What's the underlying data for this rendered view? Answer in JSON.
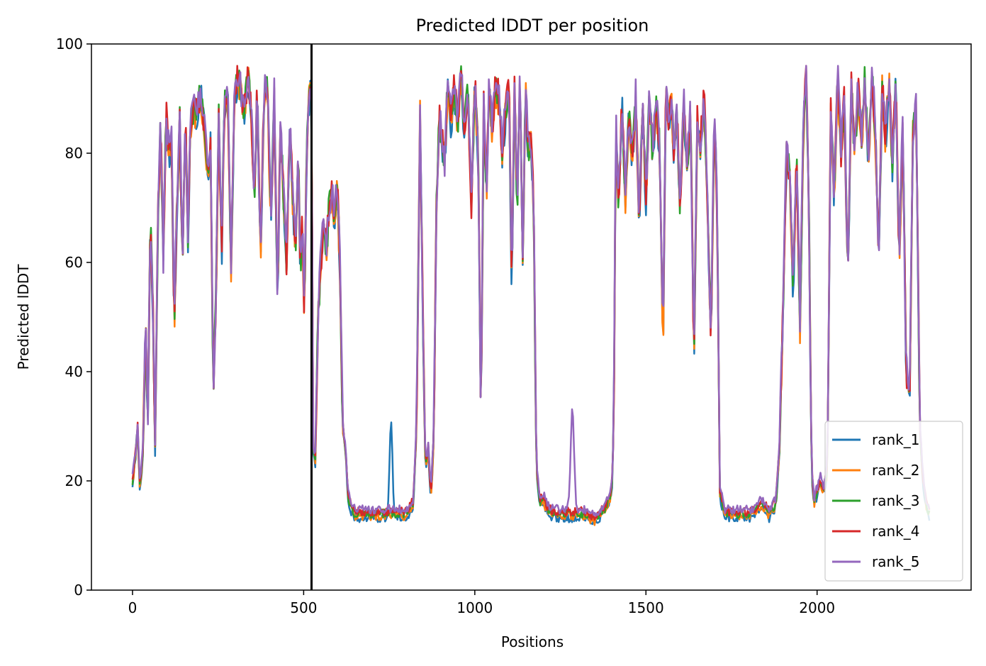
{
  "chart_data": {
    "type": "line",
    "title": "Predicted lDDT per position",
    "xlabel": "Positions",
    "ylabel": "Predicted lDDT",
    "xlim": [
      -120,
      2450
    ],
    "ylim": [
      0,
      100
    ],
    "xticks": [
      0,
      500,
      1000,
      1500,
      2000
    ],
    "yticks": [
      0,
      20,
      40,
      60,
      80,
      100
    ],
    "grid": false,
    "legend_position": "lower right",
    "vertical_line": 523,
    "base_profile": [
      [
        0,
        20
      ],
      [
        8,
        24
      ],
      [
        15,
        30
      ],
      [
        22,
        18
      ],
      [
        30,
        25
      ],
      [
        38,
        48
      ],
      [
        45,
        32
      ],
      [
        52,
        68
      ],
      [
        60,
        50
      ],
      [
        66,
        26
      ],
      [
        75,
        70
      ],
      [
        82,
        85
      ],
      [
        90,
        60
      ],
      [
        98,
        87
      ],
      [
        106,
        80
      ],
      [
        114,
        82
      ],
      [
        122,
        48
      ],
      [
        130,
        72
      ],
      [
        138,
        86
      ],
      [
        146,
        60
      ],
      [
        154,
        88
      ],
      [
        162,
        65
      ],
      [
        170,
        86
      ],
      [
        180,
        87
      ],
      [
        190,
        88
      ],
      [
        200,
        91
      ],
      [
        210,
        85
      ],
      [
        220,
        76
      ],
      [
        228,
        82
      ],
      [
        236,
        35
      ],
      [
        244,
        54
      ],
      [
        252,
        86
      ],
      [
        260,
        60
      ],
      [
        268,
        88
      ],
      [
        278,
        92
      ],
      [
        288,
        58
      ],
      [
        298,
        92
      ],
      [
        308,
        94
      ],
      [
        318,
        90
      ],
      [
        328,
        88
      ],
      [
        338,
        94
      ],
      [
        348,
        86
      ],
      [
        356,
        72
      ],
      [
        364,
        92
      ],
      [
        374,
        60
      ],
      [
        384,
        90
      ],
      [
        394,
        92
      ],
      [
        404,
        68
      ],
      [
        414,
        90
      ],
      [
        424,
        52
      ],
      [
        432,
        85
      ],
      [
        440,
        74
      ],
      [
        450,
        60
      ],
      [
        460,
        85
      ],
      [
        468,
        72
      ],
      [
        476,
        62
      ],
      [
        484,
        82
      ],
      [
        490,
        58
      ],
      [
        496,
        68
      ],
      [
        502,
        50
      ],
      [
        508,
        78
      ],
      [
        514,
        90
      ],
      [
        520,
        92
      ],
      [
        523,
        88
      ],
      [
        528,
        26
      ],
      [
        534,
        24
      ],
      [
        542,
        50
      ],
      [
        550,
        60
      ],
      [
        558,
        66
      ],
      [
        566,
        62
      ],
      [
        574,
        70
      ],
      [
        582,
        72
      ],
      [
        590,
        68
      ],
      [
        598,
        74
      ],
      [
        606,
        60
      ],
      [
        614,
        30
      ],
      [
        622,
        26
      ],
      [
        630,
        17
      ],
      [
        640,
        15
      ],
      [
        650,
        14
      ],
      [
        700,
        14
      ],
      [
        750,
        14
      ],
      [
        800,
        14
      ],
      [
        820,
        16
      ],
      [
        830,
        30
      ],
      [
        840,
        88
      ],
      [
        848,
        50
      ],
      [
        856,
        22
      ],
      [
        864,
        26
      ],
      [
        872,
        17
      ],
      [
        880,
        28
      ],
      [
        888,
        70
      ],
      [
        896,
        86
      ],
      [
        904,
        82
      ],
      [
        912,
        78
      ],
      [
        920,
        92
      ],
      [
        930,
        86
      ],
      [
        940,
        92
      ],
      [
        950,
        86
      ],
      [
        960,
        93
      ],
      [
        970,
        85
      ],
      [
        980,
        92
      ],
      [
        990,
        70
      ],
      [
        1000,
        93
      ],
      [
        1010,
        80
      ],
      [
        1018,
        30
      ],
      [
        1026,
        88
      ],
      [
        1034,
        72
      ],
      [
        1042,
        93
      ],
      [
        1050,
        84
      ],
      [
        1060,
        92
      ],
      [
        1070,
        90
      ],
      [
        1080,
        80
      ],
      [
        1090,
        88
      ],
      [
        1100,
        93
      ],
      [
        1108,
        55
      ],
      [
        1116,
        92
      ],
      [
        1124,
        70
      ],
      [
        1132,
        94
      ],
      [
        1140,
        60
      ],
      [
        1148,
        92
      ],
      [
        1156,
        80
      ],
      [
        1164,
        82
      ],
      [
        1172,
        70
      ],
      [
        1180,
        22
      ],
      [
        1190,
        16
      ],
      [
        1200,
        17
      ],
      [
        1210,
        15
      ],
      [
        1230,
        14
      ],
      [
        1260,
        14
      ],
      [
        1290,
        14
      ],
      [
        1320,
        14
      ],
      [
        1350,
        13
      ],
      [
        1380,
        15
      ],
      [
        1400,
        18
      ],
      [
        1406,
        30
      ],
      [
        1412,
        86
      ],
      [
        1420,
        70
      ],
      [
        1430,
        90
      ],
      [
        1440,
        72
      ],
      [
        1450,
        88
      ],
      [
        1460,
        78
      ],
      [
        1470,
        90
      ],
      [
        1480,
        68
      ],
      [
        1490,
        88
      ],
      [
        1500,
        72
      ],
      [
        1510,
        90
      ],
      [
        1520,
        80
      ],
      [
        1530,
        88
      ],
      [
        1540,
        82
      ],
      [
        1550,
        44
      ],
      [
        1558,
        92
      ],
      [
        1566,
        86
      ],
      [
        1574,
        90
      ],
      [
        1582,
        80
      ],
      [
        1590,
        88
      ],
      [
        1600,
        70
      ],
      [
        1610,
        90
      ],
      [
        1620,
        78
      ],
      [
        1630,
        88
      ],
      [
        1640,
        42
      ],
      [
        1650,
        86
      ],
      [
        1660,
        82
      ],
      [
        1670,
        90
      ],
      [
        1680,
        70
      ],
      [
        1690,
        46
      ],
      [
        1700,
        88
      ],
      [
        1708,
        70
      ],
      [
        1716,
        18
      ],
      [
        1730,
        14
      ],
      [
        1760,
        14
      ],
      [
        1790,
        14
      ],
      [
        1810,
        14
      ],
      [
        1840,
        16
      ],
      [
        1860,
        14
      ],
      [
        1880,
        16
      ],
      [
        1890,
        26
      ],
      [
        1900,
        50
      ],
      [
        1910,
        80
      ],
      [
        1920,
        76
      ],
      [
        1930,
        55
      ],
      [
        1940,
        80
      ],
      [
        1950,
        48
      ],
      [
        1960,
        86
      ],
      [
        1968,
        95
      ],
      [
        1976,
        70
      ],
      [
        1984,
        22
      ],
      [
        1992,
        16
      ],
      [
        2000,
        18
      ],
      [
        2010,
        20
      ],
      [
        2020,
        18
      ],
      [
        2030,
        22
      ],
      [
        2040,
        88
      ],
      [
        2050,
        72
      ],
      [
        2060,
        94
      ],
      [
        2070,
        80
      ],
      [
        2080,
        90
      ],
      [
        2090,
        55
      ],
      [
        2100,
        92
      ],
      [
        2110,
        80
      ],
      [
        2120,
        92
      ],
      [
        2130,
        82
      ],
      [
        2140,
        94
      ],
      [
        2150,
        78
      ],
      [
        2160,
        95
      ],
      [
        2170,
        84
      ],
      [
        2180,
        60
      ],
      [
        2190,
        92
      ],
      [
        2200,
        82
      ],
      [
        2210,
        94
      ],
      [
        2220,
        78
      ],
      [
        2230,
        94
      ],
      [
        2240,
        60
      ],
      [
        2250,
        86
      ],
      [
        2260,
        40
      ],
      [
        2270,
        34
      ],
      [
        2280,
        84
      ],
      [
        2290,
        88
      ],
      [
        2300,
        30
      ],
      [
        2310,
        20
      ],
      [
        2320,
        15
      ],
      [
        2330,
        14
      ]
    ],
    "series": [
      {
        "name": "rank_1",
        "color": "#1f77b4"
      },
      {
        "name": "rank_2",
        "color": "#ff7f0e"
      },
      {
        "name": "rank_3",
        "color": "#2ca02c"
      },
      {
        "name": "rank_4",
        "color": "#d62728"
      },
      {
        "name": "rank_5",
        "color": "#9467bd"
      }
    ]
  }
}
